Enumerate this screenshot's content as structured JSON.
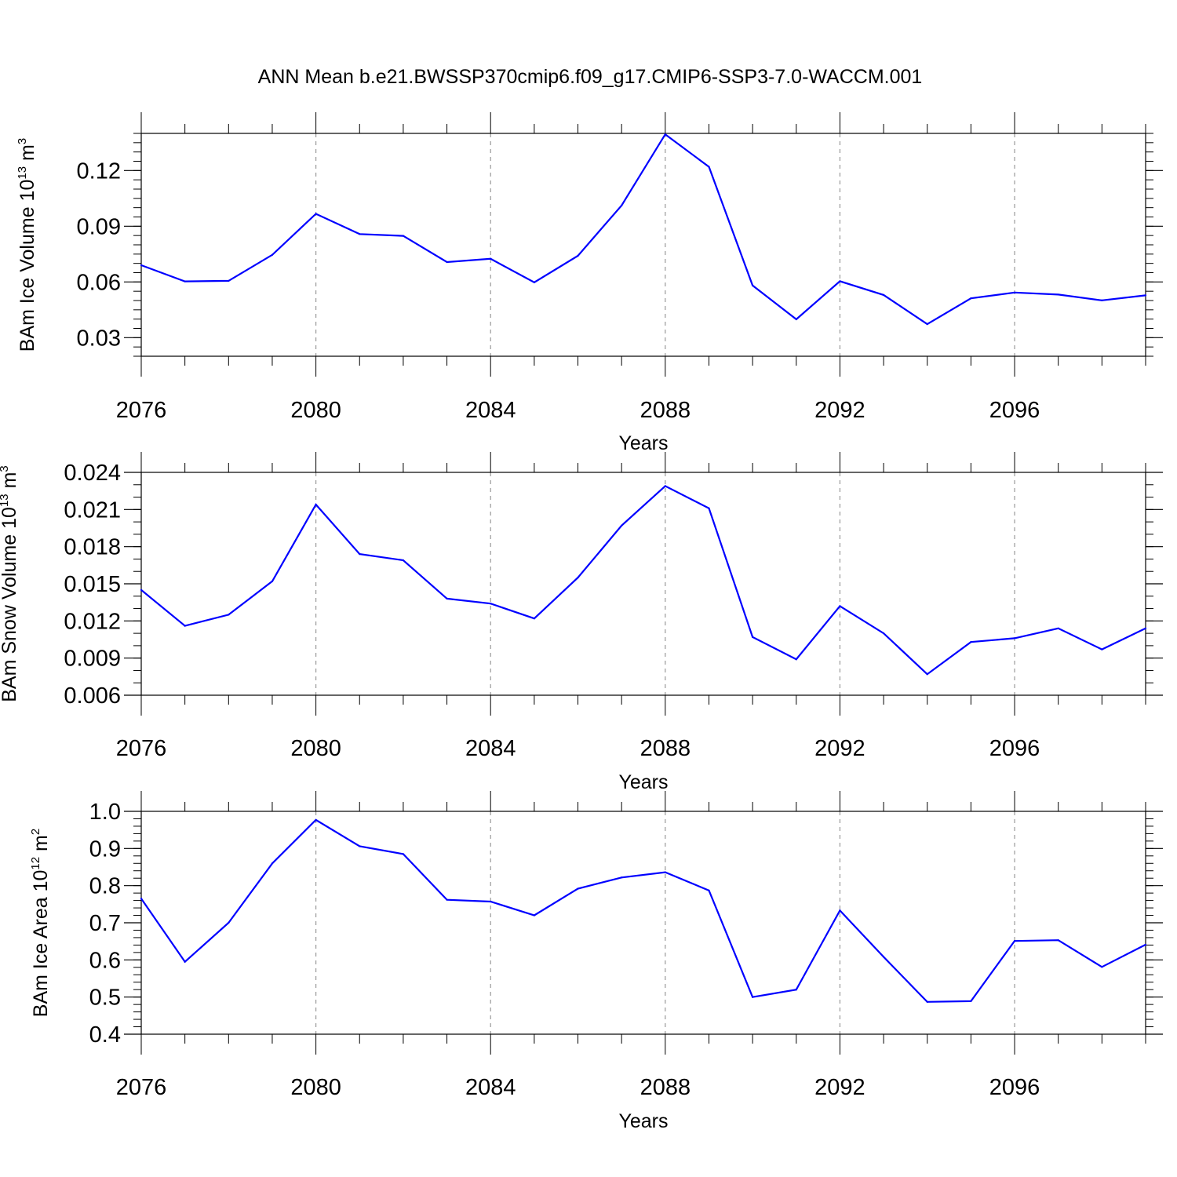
{
  "chart_data": {
    "title": "ANN Mean b.e21.BWSSP370cmip6.f09_g17.CMIP6-SSP3-7.0-WACCM.001",
    "line_color": "#0000ff",
    "panels": [
      {
        "type": "line",
        "ylabel": "BAm Ice Volume 10",
        "ylabel_exp": "13",
        "ylabel_unit": " m",
        "ylabel_unit_exp": "3",
        "xlabel": "Years",
        "xlim": [
          2076,
          2099
        ],
        "ylim": [
          0.02,
          0.14
        ],
        "yticks": [
          0.03,
          0.06,
          0.09,
          0.12
        ],
        "ytick_labels": [
          "0.03",
          "0.06",
          "0.09",
          "0.12"
        ],
        "yminor_step": 0.005,
        "xticks": [
          2076,
          2080,
          2084,
          2088,
          2092,
          2096
        ],
        "xtick_labels": [
          "2076",
          "2080",
          "2084",
          "2088",
          "2092",
          "2096"
        ],
        "grid": "vertical dashed at major x ticks",
        "x": [
          2076,
          2077,
          2078,
          2079,
          2080,
          2081,
          2082,
          2083,
          2084,
          2085,
          2086,
          2087,
          2088,
          2089,
          2090,
          2091,
          2092,
          2093,
          2094,
          2095,
          2096,
          2097,
          2098,
          2099
        ],
        "values": [
          0.069,
          0.0603,
          0.0606,
          0.0746,
          0.0967,
          0.0858,
          0.0848,
          0.0707,
          0.0725,
          0.0598,
          0.0741,
          0.1012,
          0.1395,
          0.122,
          0.0581,
          0.0399,
          0.0604,
          0.053,
          0.0373,
          0.0512,
          0.0543,
          0.0532,
          0.0501,
          0.0528
        ]
      },
      {
        "type": "line",
        "ylabel": "BAm Snow Volume 10",
        "ylabel_exp": "13",
        "ylabel_unit": " m",
        "ylabel_unit_exp": "3",
        "xlabel": "Years",
        "xlim": [
          2076,
          2099
        ],
        "ylim": [
          0.006,
          0.024
        ],
        "yticks": [
          0.006,
          0.009,
          0.012,
          0.015,
          0.018,
          0.021,
          0.024
        ],
        "ytick_labels": [
          "0.006",
          "0.009",
          "0.012",
          "0.015",
          "0.018",
          "0.021",
          "0.024"
        ],
        "yminor_step": 0.001,
        "xticks": [
          2076,
          2080,
          2084,
          2088,
          2092,
          2096
        ],
        "xtick_labels": [
          "2076",
          "2080",
          "2084",
          "2088",
          "2092",
          "2096"
        ],
        "grid": "vertical dashed at major x ticks",
        "x": [
          2076,
          2077,
          2078,
          2079,
          2080,
          2081,
          2082,
          2083,
          2084,
          2085,
          2086,
          2087,
          2088,
          2089,
          2090,
          2091,
          2092,
          2093,
          2094,
          2095,
          2096,
          2097,
          2098,
          2099
        ],
        "values": [
          0.0145,
          0.0116,
          0.0125,
          0.0152,
          0.0214,
          0.0174,
          0.0169,
          0.0138,
          0.0134,
          0.0122,
          0.0155,
          0.0197,
          0.0229,
          0.0211,
          0.0107,
          0.0089,
          0.0132,
          0.011,
          0.0077,
          0.0103,
          0.0106,
          0.0114,
          0.0097,
          0.0114
        ]
      },
      {
        "type": "line",
        "ylabel": "BAm Ice Area 10",
        "ylabel_exp": "12",
        "ylabel_unit": " m",
        "ylabel_unit_exp": "2",
        "xlabel": "Years",
        "xlim": [
          2076,
          2099
        ],
        "ylim": [
          0.4,
          1.0
        ],
        "yticks": [
          0.4,
          0.5,
          0.6,
          0.7,
          0.8,
          0.9,
          1.0
        ],
        "ytick_labels": [
          "0.4",
          "0.5",
          "0.6",
          "0.7",
          "0.8",
          "0.9",
          "1.0"
        ],
        "yminor_step": 0.02,
        "xticks": [
          2076,
          2080,
          2084,
          2088,
          2092,
          2096
        ],
        "xtick_labels": [
          "2076",
          "2080",
          "2084",
          "2088",
          "2092",
          "2096"
        ],
        "grid": "vertical dashed at major x ticks",
        "x": [
          2076,
          2077,
          2078,
          2079,
          2080,
          2081,
          2082,
          2083,
          2084,
          2085,
          2086,
          2087,
          2088,
          2089,
          2090,
          2091,
          2092,
          2093,
          2094,
          2095,
          2096,
          2097,
          2098,
          2099
        ],
        "values": [
          0.765,
          0.595,
          0.7,
          0.86,
          0.977,
          0.906,
          0.885,
          0.762,
          0.757,
          0.72,
          0.792,
          0.822,
          0.836,
          0.787,
          0.5,
          0.52,
          0.733,
          0.608,
          0.487,
          0.489,
          0.651,
          0.653,
          0.581,
          0.641
        ]
      }
    ]
  }
}
